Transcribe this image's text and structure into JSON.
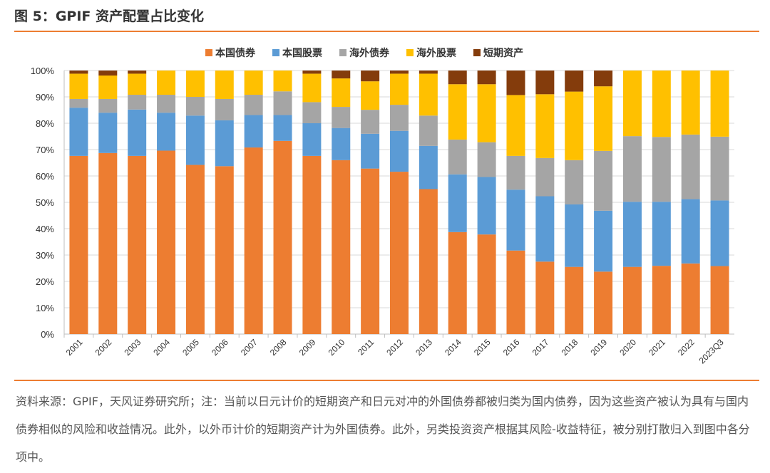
{
  "title": "图 5：GPIF 资产配置占比变化",
  "source": "资料来源：GPIF，天风证券研究所；注：当前以日元计价的短期资产和日元对冲的外国债券都被归类为国内债券，因为这些资产被认为具有与国内债券相似的风险和收益情况。此外，以外币计价的短期资产计为外国债券。此外，另类投资资产根据其风险-收益特征，被分别打散归入到图中各分项中。",
  "chart_data": {
    "type": "bar",
    "stacked": true,
    "title": "",
    "xlabel": "",
    "ylabel": "",
    "ylim": [
      0,
      100
    ],
    "yticks": [
      "0%",
      "10%",
      "20%",
      "30%",
      "40%",
      "50%",
      "60%",
      "70%",
      "80%",
      "90%",
      "100%"
    ],
    "grid": true,
    "legend_position": "top",
    "categories": [
      "2001",
      "2002",
      "2003",
      "2004",
      "2005",
      "2006",
      "2007",
      "2008",
      "2009",
      "2010",
      "2011",
      "2012",
      "2013",
      "2014",
      "2015",
      "2016",
      "2017",
      "2018",
      "2019",
      "2020",
      "2021",
      "2022",
      "2023Q3"
    ],
    "series": [
      {
        "name": "本国债券",
        "color": "#ed7d31",
        "values": [
          67.6,
          68.7,
          67.6,
          69.6,
          64.2,
          63.7,
          70.8,
          73.3,
          67.6,
          66.0,
          62.8,
          61.6,
          55.0,
          38.7,
          37.8,
          31.7,
          27.5,
          25.5,
          23.7,
          25.5,
          25.9,
          26.8,
          25.8
        ]
      },
      {
        "name": "本国股票",
        "color": "#5b9bd5",
        "values": [
          18.3,
          15.3,
          17.6,
          14.4,
          18.7,
          17.4,
          12.3,
          9.8,
          12.4,
          12.2,
          13.2,
          15.5,
          16.4,
          21.9,
          21.8,
          23.1,
          24.8,
          23.7,
          23.1,
          24.7,
          24.3,
          24.4,
          24.9
        ]
      },
      {
        "name": "海外债券",
        "color": "#a5a5a5",
        "values": [
          3.3,
          5.2,
          5.6,
          6.8,
          7.1,
          8.1,
          7.7,
          9.0,
          8.0,
          8.0,
          9.1,
          9.9,
          11.5,
          13.2,
          13.2,
          12.8,
          14.5,
          16.8,
          22.7,
          24.9,
          24.6,
          24.5,
          24.2
        ]
      },
      {
        "name": "海外股票",
        "color": "#ffc000",
        "values": [
          9.6,
          8.9,
          8.0,
          9.2,
          10.0,
          10.8,
          9.2,
          7.9,
          10.8,
          10.8,
          10.8,
          11.8,
          15.9,
          21.0,
          22.0,
          23.1,
          24.2,
          26.0,
          24.5,
          24.9,
          25.2,
          24.3,
          25.1
        ]
      },
      {
        "name": "短期资产",
        "color": "#843c0c",
        "values": [
          1.2,
          1.9,
          1.2,
          0,
          0,
          0,
          0,
          0,
          1.2,
          3.0,
          4.1,
          1.2,
          1.2,
          5.2,
          5.2,
          9.3,
          9.0,
          8.0,
          6.0,
          0,
          0,
          0,
          0
        ]
      }
    ]
  }
}
